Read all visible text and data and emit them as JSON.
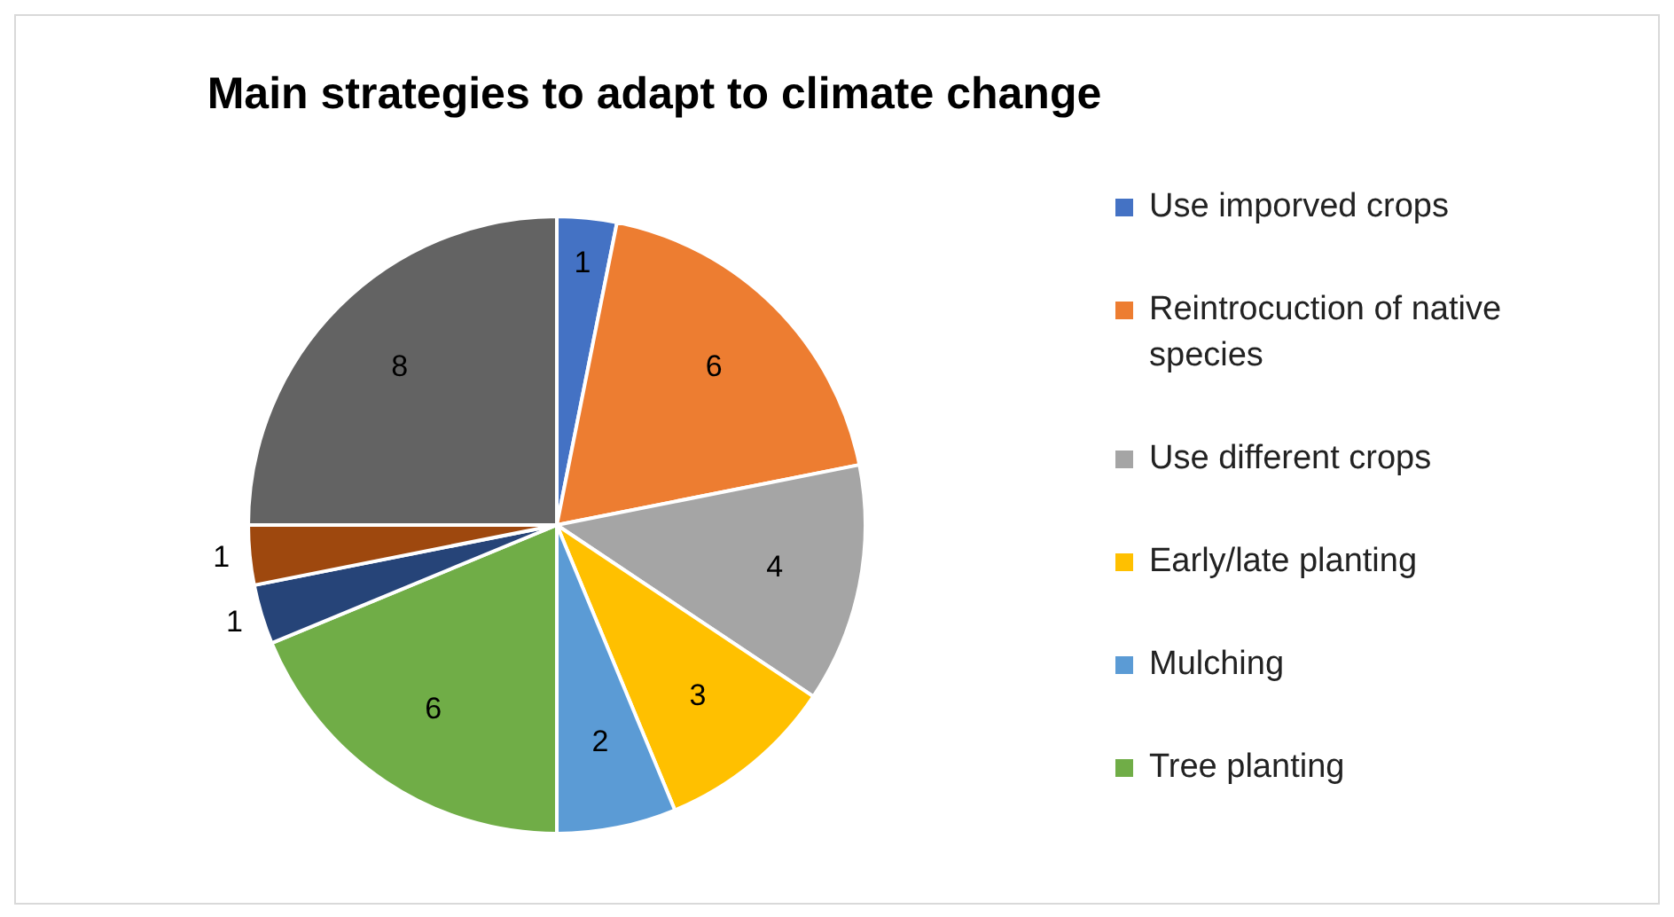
{
  "chart_data": {
    "type": "pie",
    "title": "Main strategies to adapt to climate change",
    "categories": [
      "Use imporved crops",
      "Reintrocuction of native species",
      "Use different crops",
      "Early/late planting",
      "Mulching",
      "Tree planting",
      null,
      null,
      null
    ],
    "values": [
      1,
      6,
      4,
      3,
      2,
      6,
      1,
      1,
      8
    ],
    "colors": [
      "#4472c4",
      "#ed7d31",
      "#a5a5a5",
      "#ffc000",
      "#5b9bd5",
      "#70ad47",
      "#264478",
      "#9e480e",
      "#636363"
    ],
    "data_labels": true,
    "legend": "right"
  }
}
